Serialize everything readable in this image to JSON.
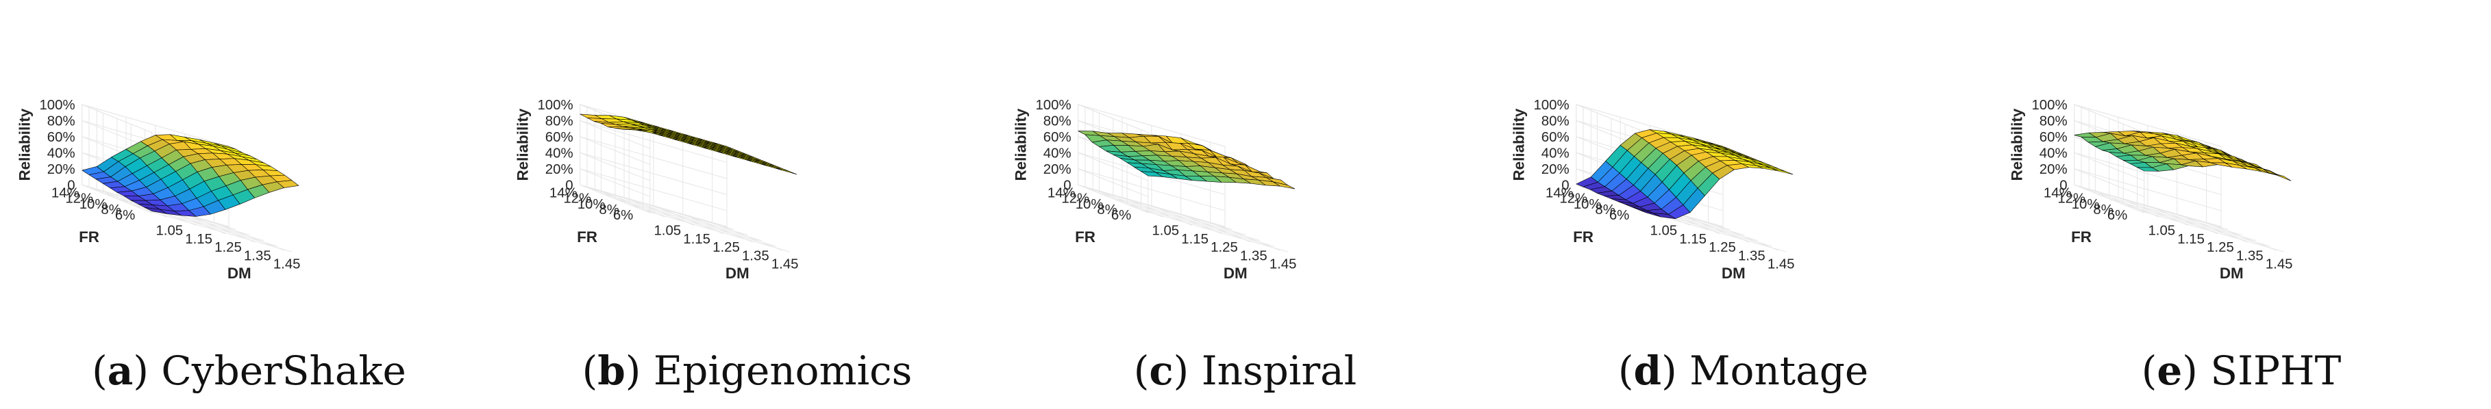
{
  "chart_data": [
    {
      "type": "surface",
      "tag": "a",
      "title": "CyberShake",
      "zlabel": "Reliability",
      "xlabel": "DM",
      "ylabel": "FR",
      "x_ticks": [
        "1.05",
        "1.15",
        "1.25",
        "1.35",
        "1.45"
      ],
      "y_ticks": [
        "14%",
        "12%",
        "10%",
        "8%",
        "6%"
      ],
      "z_ticks": [
        "0",
        "20%",
        "40%",
        "60%",
        "80%",
        "100%"
      ],
      "x": [
        1.0,
        1.05,
        1.1,
        1.15,
        1.2,
        1.25,
        1.3,
        1.35,
        1.4,
        1.45,
        1.5
      ],
      "y": [
        0.15,
        0.14,
        0.13,
        0.12,
        0.11,
        0.1,
        0.09,
        0.08,
        0.07,
        0.06,
        0.05
      ],
      "zlim": [
        0,
        1
      ],
      "z": [
        [
          0.18,
          0.28,
          0.45,
          0.6,
          0.75,
          0.88,
          0.94,
          0.96,
          0.98,
          0.99,
          1.0
        ],
        [
          0.16,
          0.25,
          0.43,
          0.58,
          0.73,
          0.86,
          0.9,
          0.95,
          0.97,
          0.99,
          1.0
        ],
        [
          0.14,
          0.22,
          0.4,
          0.56,
          0.7,
          0.84,
          0.92,
          0.94,
          0.97,
          0.98,
          0.99
        ],
        [
          0.12,
          0.2,
          0.35,
          0.5,
          0.65,
          0.8,
          0.86,
          0.92,
          0.95,
          0.97,
          0.99
        ],
        [
          0.1,
          0.17,
          0.3,
          0.45,
          0.6,
          0.75,
          0.84,
          0.9,
          0.94,
          0.96,
          0.98
        ],
        [
          0.08,
          0.15,
          0.25,
          0.4,
          0.55,
          0.7,
          0.8,
          0.86,
          0.92,
          0.95,
          0.97
        ],
        [
          0.07,
          0.12,
          0.2,
          0.33,
          0.48,
          0.63,
          0.74,
          0.82,
          0.88,
          0.93,
          0.96
        ],
        [
          0.05,
          0.1,
          0.16,
          0.26,
          0.4,
          0.55,
          0.66,
          0.76,
          0.84,
          0.9,
          0.94
        ],
        [
          0.04,
          0.08,
          0.12,
          0.2,
          0.32,
          0.46,
          0.58,
          0.7,
          0.79,
          0.86,
          0.92
        ],
        [
          0.03,
          0.06,
          0.09,
          0.15,
          0.25,
          0.38,
          0.5,
          0.62,
          0.73,
          0.82,
          0.89
        ],
        [
          0.02,
          0.04,
          0.07,
          0.11,
          0.19,
          0.3,
          0.42,
          0.55,
          0.67,
          0.78,
          0.86
        ]
      ]
    },
    {
      "type": "surface",
      "tag": "b",
      "title": "Epigenomics",
      "zlabel": "Reliability",
      "xlabel": "DM",
      "ylabel": "FR",
      "x_ticks": [
        "1.05",
        "1.15",
        "1.25",
        "1.35",
        "1.45"
      ],
      "y_ticks": [
        "14%",
        "12%",
        "10%",
        "8%",
        "6%"
      ],
      "z_ticks": [
        "0",
        "20%",
        "40%",
        "60%",
        "80%",
        "100%"
      ],
      "x": [
        1.0,
        1.05,
        1.1,
        1.15,
        1.2,
        1.25,
        1.3,
        1.35,
        1.4,
        1.45,
        1.5
      ],
      "y": [
        0.15,
        0.14,
        0.13,
        0.12,
        0.11,
        0.1,
        0.09,
        0.08,
        0.07,
        0.06,
        0.05
      ],
      "zlim": [
        0,
        1
      ],
      "z": [
        [
          0.88,
          0.92,
          0.97,
          1.0,
          1.0,
          1.0,
          1.0,
          1.0,
          1.0,
          1.0,
          1.0
        ],
        [
          0.87,
          0.91,
          0.96,
          1.0,
          1.0,
          1.0,
          1.0,
          1.0,
          1.0,
          1.0,
          1.0
        ],
        [
          0.86,
          0.9,
          0.96,
          1.0,
          1.0,
          1.0,
          1.0,
          1.0,
          1.0,
          1.0,
          1.0
        ],
        [
          0.87,
          0.91,
          0.97,
          1.0,
          1.0,
          1.0,
          1.0,
          1.0,
          1.0,
          1.0,
          1.0
        ],
        [
          0.86,
          0.92,
          0.98,
          1.0,
          1.0,
          1.0,
          1.0,
          1.0,
          1.0,
          1.0,
          1.0
        ],
        [
          0.88,
          0.94,
          0.99,
          1.0,
          1.0,
          1.0,
          1.0,
          1.0,
          1.0,
          1.0,
          1.0
        ],
        [
          0.9,
          0.96,
          1.0,
          1.0,
          1.0,
          1.0,
          1.0,
          1.0,
          1.0,
          1.0,
          1.0
        ],
        [
          0.93,
          0.98,
          1.0,
          1.0,
          1.0,
          1.0,
          1.0,
          1.0,
          1.0,
          1.0,
          1.0
        ],
        [
          0.96,
          1.0,
          1.0,
          1.0,
          1.0,
          1.0,
          1.0,
          1.0,
          1.0,
          1.0,
          1.0
        ],
        [
          0.98,
          1.0,
          1.0,
          1.0,
          1.0,
          1.0,
          1.0,
          1.0,
          1.0,
          1.0,
          1.0
        ],
        [
          1.0,
          1.0,
          1.0,
          1.0,
          1.0,
          1.0,
          1.0,
          1.0,
          1.0,
          1.0,
          1.0
        ]
      ]
    },
    {
      "type": "surface",
      "tag": "c",
      "title": "Inspiral",
      "zlabel": "Reliability",
      "xlabel": "DM",
      "ylabel": "FR",
      "x_ticks": [
        "1.05",
        "1.15",
        "1.25",
        "1.35",
        "1.45"
      ],
      "y_ticks": [
        "14%",
        "12%",
        "10%",
        "8%",
        "6%"
      ],
      "z_ticks": [
        "0",
        "20%",
        "40%",
        "60%",
        "80%",
        "100%"
      ],
      "x": [
        1.0,
        1.05,
        1.1,
        1.15,
        1.2,
        1.25,
        1.3,
        1.35,
        1.4,
        1.45,
        1.5
      ],
      "y": [
        0.15,
        0.14,
        0.13,
        0.12,
        0.11,
        0.1,
        0.09,
        0.08,
        0.07,
        0.06,
        0.05
      ],
      "zlim": [
        0,
        1
      ],
      "z": [
        [
          0.67,
          0.72,
          0.75,
          0.8,
          0.84,
          0.88,
          0.92,
          0.95,
          0.93,
          0.9,
          0.88
        ],
        [
          0.66,
          0.7,
          0.74,
          0.78,
          0.85,
          0.9,
          0.86,
          0.92,
          0.94,
          0.89,
          0.87
        ],
        [
          0.6,
          0.68,
          0.72,
          0.76,
          0.8,
          0.86,
          0.9,
          0.88,
          0.92,
          0.9,
          0.86
        ],
        [
          0.58,
          0.65,
          0.7,
          0.74,
          0.82,
          0.8,
          0.86,
          0.9,
          0.87,
          0.91,
          0.88
        ],
        [
          0.56,
          0.6,
          0.66,
          0.72,
          0.76,
          0.82,
          0.84,
          0.86,
          0.9,
          0.88,
          0.85
        ],
        [
          0.55,
          0.58,
          0.64,
          0.7,
          0.74,
          0.78,
          0.82,
          0.88,
          0.85,
          0.89,
          0.86
        ],
        [
          0.54,
          0.57,
          0.62,
          0.66,
          0.72,
          0.76,
          0.8,
          0.82,
          0.86,
          0.84,
          0.88
        ],
        [
          0.52,
          0.56,
          0.6,
          0.64,
          0.68,
          0.74,
          0.77,
          0.8,
          0.84,
          0.86,
          0.84
        ],
        [
          0.5,
          0.54,
          0.56,
          0.62,
          0.66,
          0.7,
          0.74,
          0.78,
          0.8,
          0.84,
          0.86
        ],
        [
          0.48,
          0.52,
          0.55,
          0.58,
          0.63,
          0.68,
          0.72,
          0.75,
          0.79,
          0.82,
          0.83
        ],
        [
          0.46,
          0.5,
          0.53,
          0.56,
          0.6,
          0.64,
          0.69,
          0.73,
          0.76,
          0.8,
          0.82
        ]
      ]
    },
    {
      "type": "surface",
      "tag": "d",
      "title": "Montage",
      "zlabel": "Reliability",
      "xlabel": "DM",
      "ylabel": "FR",
      "x_ticks": [
        "1.05",
        "1.15",
        "1.25",
        "1.35",
        "1.45"
      ],
      "y_ticks": [
        "14%",
        "12%",
        "10%",
        "8%",
        "6%"
      ],
      "z_ticks": [
        "0",
        "20%",
        "40%",
        "60%",
        "80%",
        "100%"
      ],
      "x": [
        1.0,
        1.05,
        1.1,
        1.15,
        1.2,
        1.25,
        1.3,
        1.35,
        1.4,
        1.45,
        1.5
      ],
      "y": [
        0.15,
        0.14,
        0.13,
        0.12,
        0.11,
        0.1,
        0.09,
        0.08,
        0.07,
        0.06,
        0.05
      ],
      "zlim": [
        0,
        1
      ],
      "z": [
        [
          0.01,
          0.15,
          0.4,
          0.65,
          0.85,
          0.95,
          0.98,
          0.99,
          1.0,
          1.0,
          1.0
        ],
        [
          0.01,
          0.12,
          0.36,
          0.62,
          0.83,
          0.94,
          0.98,
          0.99,
          1.0,
          1.0,
          1.0
        ],
        [
          0.01,
          0.1,
          0.32,
          0.58,
          0.8,
          0.92,
          0.97,
          0.99,
          1.0,
          1.0,
          1.0
        ],
        [
          0.0,
          0.08,
          0.28,
          0.54,
          0.77,
          0.9,
          0.96,
          0.98,
          0.99,
          1.0,
          1.0
        ],
        [
          0.0,
          0.06,
          0.24,
          0.5,
          0.74,
          0.88,
          0.95,
          0.98,
          0.99,
          1.0,
          1.0
        ],
        [
          0.0,
          0.04,
          0.2,
          0.46,
          0.7,
          0.86,
          0.94,
          0.97,
          0.99,
          1.0,
          1.0
        ],
        [
          0.0,
          0.03,
          0.16,
          0.4,
          0.66,
          0.84,
          0.93,
          0.97,
          0.99,
          1.0,
          1.0
        ],
        [
          0.0,
          0.02,
          0.12,
          0.34,
          0.6,
          0.8,
          0.91,
          0.96,
          0.98,
          0.99,
          1.0
        ],
        [
          0.0,
          0.01,
          0.08,
          0.28,
          0.54,
          0.76,
          0.89,
          0.95,
          0.98,
          0.99,
          1.0
        ],
        [
          0.0,
          0.01,
          0.05,
          0.22,
          0.48,
          0.72,
          0.87,
          0.94,
          0.97,
          0.99,
          1.0
        ],
        [
          0.0,
          0.0,
          0.03,
          0.16,
          0.42,
          0.68,
          0.85,
          0.93,
          0.97,
          0.99,
          1.0
        ]
      ]
    },
    {
      "type": "surface",
      "tag": "e",
      "title": "SIPHT",
      "zlabel": "Reliability",
      "xlabel": "DM",
      "ylabel": "FR",
      "x_ticks": [
        "1.05",
        "1.15",
        "1.25",
        "1.35",
        "1.45"
      ],
      "y_ticks": [
        "14%",
        "12%",
        "10%",
        "8%",
        "6%"
      ],
      "z_ticks": [
        "0",
        "20%",
        "40%",
        "60%",
        "80%",
        "100%"
      ],
      "x": [
        1.0,
        1.05,
        1.1,
        1.15,
        1.2,
        1.25,
        1.3,
        1.35,
        1.4,
        1.45,
        1.5
      ],
      "y": [
        0.15,
        0.14,
        0.13,
        0.12,
        0.11,
        0.1,
        0.09,
        0.08,
        0.07,
        0.06,
        0.05
      ],
      "zlim": [
        0,
        1
      ],
      "z": [
        [
          0.62,
          0.7,
          0.76,
          0.82,
          0.88,
          0.92,
          0.96,
          0.98,
          0.97,
          0.96,
          0.95
        ],
        [
          0.63,
          0.68,
          0.78,
          0.8,
          0.9,
          0.93,
          0.97,
          0.96,
          0.98,
          0.95,
          0.94
        ],
        [
          0.6,
          0.66,
          0.74,
          0.84,
          0.86,
          0.94,
          0.95,
          0.97,
          0.96,
          0.97,
          0.93
        ],
        [
          0.58,
          0.68,
          0.72,
          0.8,
          0.9,
          0.91,
          0.96,
          0.94,
          0.97,
          0.95,
          0.94
        ],
        [
          0.57,
          0.64,
          0.74,
          0.78,
          0.86,
          0.92,
          0.93,
          0.97,
          0.95,
          0.96,
          0.93
        ],
        [
          0.58,
          0.62,
          0.7,
          0.8,
          0.84,
          0.9,
          0.94,
          0.95,
          0.96,
          0.94,
          0.95
        ],
        [
          0.56,
          0.63,
          0.68,
          0.76,
          0.86,
          0.88,
          0.92,
          0.96,
          0.94,
          0.95,
          0.93
        ],
        [
          0.55,
          0.6,
          0.7,
          0.74,
          0.82,
          0.9,
          0.91,
          0.93,
          0.95,
          0.94,
          0.94
        ],
        [
          0.54,
          0.61,
          0.66,
          0.76,
          0.8,
          0.86,
          0.92,
          0.94,
          0.93,
          0.95,
          0.93
        ],
        [
          0.53,
          0.58,
          0.68,
          0.72,
          0.82,
          0.85,
          0.9,
          0.92,
          0.94,
          0.93,
          0.94
        ],
        [
          0.52,
          0.57,
          0.64,
          0.74,
          0.78,
          0.86,
          0.88,
          0.91,
          0.93,
          0.94,
          0.92
        ]
      ]
    }
  ],
  "colors": {
    "axis_text": "#262626",
    "grid": "#e6e6e6",
    "mesh_edge": "#000000",
    "colormap": [
      "#3e26a8",
      "#4744e8",
      "#2e87f7",
      "#149dd5",
      "#0ab6c7",
      "#27c19f",
      "#7bc663",
      "#d6ba32",
      "#fac82c",
      "#f9fb0e"
    ]
  }
}
